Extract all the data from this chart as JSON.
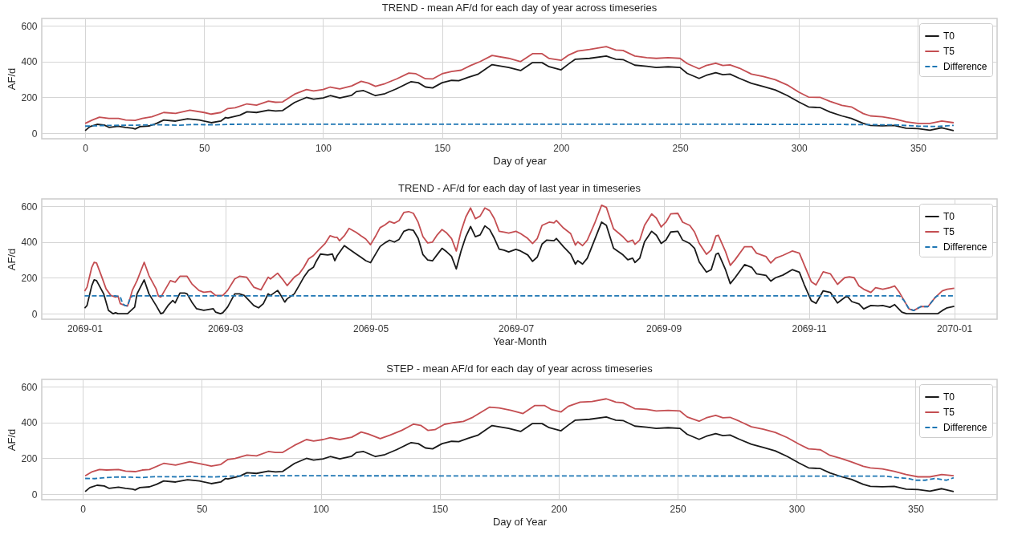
{
  "chart_data": [
    {
      "type": "line",
      "title": "TREND - mean AF/d for each day of year across timeseries",
      "xlabel": "Day of year",
      "ylabel": "AF/d",
      "xlim": [
        -18.25,
        383.25
      ],
      "ylim": [
        -30.5,
        640.5
      ],
      "xticks": [
        0,
        50,
        100,
        150,
        200,
        250,
        300,
        350
      ],
      "yticks": [
        0,
        200,
        400,
        600
      ],
      "grid": true,
      "legend": "top right",
      "series": [
        {
          "name": "T0",
          "color": "#1a1a1a",
          "line_style": "solid",
          "x": [
            0,
            2,
            5,
            8,
            10,
            14,
            17,
            20,
            21,
            23,
            27,
            30,
            33,
            38,
            43,
            48,
            53,
            57,
            59,
            60,
            65,
            68,
            72,
            77,
            80,
            83,
            88,
            93,
            96,
            100,
            103,
            107,
            112,
            114,
            117,
            122,
            126,
            131,
            137,
            140,
            143,
            146,
            150,
            154,
            157,
            161,
            165,
            171,
            178,
            183,
            188,
            192,
            195,
            200,
            203,
            206,
            212,
            219,
            223,
            226,
            231,
            236,
            240,
            245,
            250,
            253,
            258,
            261,
            265,
            268,
            271,
            275,
            280,
            285,
            290,
            295,
            300,
            304,
            309,
            313,
            318,
            322,
            327,
            330,
            335,
            340,
            345,
            350,
            355,
            360,
            365
          ],
          "values": [
            15,
            37,
            50,
            46,
            33,
            39,
            33,
            28,
            24,
            37,
            41,
            55,
            74,
            68,
            81,
            74,
            59,
            68,
            88,
            85,
            101,
            120,
            116,
            129,
            124,
            127,
            172,
            200,
            190,
            197,
            210,
            197,
            212,
            233,
            238,
            210,
            221,
            249,
            288,
            282,
            258,
            253,
            282,
            295,
            293,
            312,
            329,
            383,
            367,
            350,
            394,
            394,
            371,
            354,
            385,
            413,
            418,
            431,
            413,
            411,
            380,
            374,
            367,
            371,
            367,
            334,
            306,
            323,
            338,
            327,
            330,
            306,
            279,
            261,
            242,
            211,
            174,
            147,
            143,
            119,
            97,
            83,
            55,
            44,
            42,
            44,
            28,
            26,
            17,
            31,
            15
          ]
        },
        {
          "name": "T5",
          "color": "#c44e52",
          "line_style": "solid",
          "x": [
            0,
            3,
            6,
            10,
            14,
            17,
            21,
            24,
            28,
            33,
            38,
            44,
            50,
            53,
            57,
            60,
            63,
            68,
            72,
            77,
            80,
            83,
            88,
            93,
            96,
            100,
            103,
            107,
            112,
            116,
            119,
            122,
            126,
            131,
            136,
            139,
            143,
            146,
            150,
            154,
            158,
            162,
            166,
            171,
            178,
            183,
            188,
            192,
            195,
            200,
            203,
            207,
            212,
            219,
            223,
            226,
            231,
            236,
            240,
            245,
            250,
            253,
            258,
            261,
            265,
            268,
            271,
            275,
            280,
            285,
            290,
            295,
            300,
            304,
            309,
            313,
            318,
            322,
            327,
            330,
            335,
            340,
            345,
            350,
            355,
            360,
            365
          ],
          "values": [
            55,
            74,
            90,
            83,
            83,
            74,
            72,
            83,
            92,
            116,
            111,
            129,
            116,
            107,
            116,
            138,
            142,
            164,
            157,
            179,
            173,
            175,
            218,
            244,
            236,
            244,
            258,
            247,
            264,
            290,
            280,
            262,
            277,
            304,
            336,
            332,
            304,
            303,
            332,
            345,
            352,
            378,
            400,
            434,
            418,
            400,
            444,
            444,
            417,
            407,
            435,
            459,
            468,
            483,
            464,
            462,
            431,
            422,
            418,
            422,
            418,
            389,
            360,
            378,
            391,
            378,
            382,
            363,
            330,
            317,
            299,
            270,
            229,
            202,
            200,
            178,
            156,
            147,
            110,
            97,
            92,
            81,
            64,
            55,
            55,
            68,
            59
          ]
        },
        {
          "name": "Difference",
          "color": "#1f77b4",
          "line_style": "dashed",
          "x": [
            0,
            5,
            10,
            20,
            30,
            35,
            40,
            45,
            55,
            60,
            100,
            200,
            270,
            280,
            320,
            340,
            350,
            358,
            365
          ],
          "values": [
            40,
            42,
            44,
            45,
            48,
            46,
            45,
            49,
            47,
            50,
            51,
            51,
            51,
            50,
            49,
            47,
            40,
            38,
            44
          ]
        }
      ]
    },
    {
      "type": "line",
      "title": "TREND - AF/d for each day of last year in timeseries",
      "xlabel": "Year-Month",
      "ylabel": "AF/d",
      "xlim": [
        "2068-12-14",
        "2070-01-19"
      ],
      "ylim": [
        -30.5,
        640.5
      ],
      "xticks": [
        {
          "value": "2069-01-01",
          "label": "2069-01"
        },
        {
          "value": "2069-03-01",
          "label": "2069-03"
        },
        {
          "value": "2069-05-01",
          "label": "2069-05"
        },
        {
          "value": "2069-07-01",
          "label": "2069-07"
        },
        {
          "value": "2069-09-01",
          "label": "2069-09"
        },
        {
          "value": "2069-11-01",
          "label": "2069-11"
        },
        {
          "value": "2070-01-01",
          "label": "2070-01"
        }
      ],
      "yticks": [
        0,
        200,
        400,
        600
      ],
      "grid": true,
      "legend": "top right",
      "series": [
        {
          "name": "T0",
          "color": "#1a1a1a",
          "line_style": "solid",
          "x": [
            "2069-01-01",
            "2069-01-02",
            "2069-01-04",
            "2069-01-05",
            "2069-01-06",
            "2069-01-09",
            "2069-01-11",
            "2069-01-13",
            "2069-01-14",
            "2069-01-15",
            "2069-01-19",
            "2069-01-22",
            "2069-01-23",
            "2069-01-26",
            "2069-01-28",
            "2069-01-31",
            "2069-02-02",
            "2069-02-03",
            "2069-02-05",
            "2069-02-07",
            "2069-02-08",
            "2069-02-10",
            "2069-02-12",
            "2069-02-13",
            "2069-02-15",
            "2069-02-17",
            "2069-02-20",
            "2069-02-22",
            "2069-02-24",
            "2069-02-25",
            "2069-02-27",
            "2069-02-28",
            "2069-03-02",
            "2069-03-05",
            "2069-03-07",
            "2069-03-09",
            "2069-03-11",
            "2069-03-13",
            "2069-03-15",
            "2069-03-17",
            "2069-03-19",
            "2069-03-20",
            "2069-03-23",
            "2069-03-24",
            "2069-03-26",
            "2069-03-27",
            "2069-03-30",
            "2069-04-01",
            "2069-04-03",
            "2069-04-05",
            "2069-04-07",
            "2069-04-08",
            "2069-04-10",
            "2069-04-13",
            "2069-04-15",
            "2069-04-16",
            "2069-04-17",
            "2069-04-20",
            "2069-04-22",
            "2069-04-25",
            "2069-04-27",
            "2069-04-29",
            "2069-05-01",
            "2069-05-03",
            "2069-05-05",
            "2069-05-07",
            "2069-05-09",
            "2069-05-11",
            "2069-05-13",
            "2069-05-15",
            "2069-05-17",
            "2069-05-19",
            "2069-05-21",
            "2069-05-23",
            "2069-05-25",
            "2069-05-27",
            "2069-05-29",
            "2069-05-31",
            "2069-06-02",
            "2069-06-04",
            "2069-06-06",
            "2069-06-08",
            "2069-06-10",
            "2069-06-12",
            "2069-06-14",
            "2069-06-16",
            "2069-06-18",
            "2069-06-20",
            "2069-06-22",
            "2069-06-24",
            "2069-06-26",
            "2069-06-28",
            "2069-07-01",
            "2069-07-03",
            "2069-07-06",
            "2069-07-08",
            "2069-07-10",
            "2069-07-12",
            "2069-07-14",
            "2069-07-17",
            "2069-07-18",
            "2069-07-21",
            "2069-07-24",
            "2069-07-26",
            "2069-07-27",
            "2069-07-29",
            "2069-07-31",
            "2069-08-03",
            "2069-08-06",
            "2069-08-08",
            "2069-08-11",
            "2069-08-15",
            "2069-08-17",
            "2069-08-19",
            "2069-08-20",
            "2069-08-22",
            "2069-08-24",
            "2069-08-27",
            "2069-08-29",
            "2069-08-31",
            "2069-09-02",
            "2069-09-04",
            "2069-09-07",
            "2069-09-09",
            "2069-09-12",
            "2069-09-14",
            "2069-09-16",
            "2069-09-19",
            "2069-09-21",
            "2069-09-23",
            "2069-09-24",
            "2069-09-27",
            "2069-09-29",
            "2069-10-01",
            "2069-10-05",
            "2069-10-08",
            "2069-10-10",
            "2069-10-14",
            "2069-10-16",
            "2069-10-18",
            "2069-10-21",
            "2069-10-25",
            "2069-10-28",
            "2069-10-30",
            "2069-11-02",
            "2069-11-04",
            "2069-11-07",
            "2069-11-10",
            "2069-11-13",
            "2069-11-17",
            "2069-11-19",
            "2069-11-22",
            "2069-11-24",
            "2069-11-27",
            "2069-11-30",
            "2069-12-02",
            "2069-12-05",
            "2069-12-07",
            "2069-12-10",
            "2069-12-12",
            "2069-12-25",
            "2069-12-27",
            "2069-12-29",
            "2070-01-01"
          ],
          "values": [
            31,
            46,
            157,
            189,
            185,
            111,
            19,
            0,
            6,
            0,
            0,
            37,
            111,
            189,
            111,
            46,
            0,
            6,
            46,
            74,
            61,
            115,
            115,
            111,
            65,
            28,
            19,
            24,
            28,
            9,
            0,
            6,
            37,
            111,
            111,
            102,
            74,
            46,
            33,
            56,
            111,
            102,
            130,
            111,
            65,
            83,
            111,
            157,
            204,
            241,
            259,
            287,
            333,
            328,
            333,
            296,
            324,
            380,
            361,
            333,
            315,
            296,
            285,
            330,
            375,
            395,
            410,
            400,
            415,
            460,
            470,
            465,
            420,
            330,
            300,
            295,
            330,
            365,
            345,
            320,
            250,
            350,
            430,
            487,
            430,
            440,
            490,
            470,
            420,
            360,
            355,
            345,
            359,
            350,
            328,
            292,
            316,
            389,
            411,
            407,
            420,
            374,
            332,
            277,
            296,
            277,
            310,
            411,
            511,
            493,
            365,
            328,
            301,
            310,
            286,
            310,
            401,
            460,
            438,
            392,
            411,
            456,
            460,
            411,
            392,
            365,
            288,
            232,
            246,
            332,
            338,
            246,
            168,
            201,
            274,
            259,
            223,
            214,
            182,
            201,
            215,
            246,
            232,
            164,
            73,
            58,
            128,
            119,
            60,
            100,
            68,
            55,
            27,
            46,
            44,
            46,
            36,
            51,
            9,
            0,
            0,
            18,
            33,
            42
          ]
        },
        {
          "name": "T5",
          "color": "#c44e52",
          "line_style": "solid",
          "x": [
            "2069-01-01",
            "2069-01-02",
            "2069-01-04",
            "2069-01-05",
            "2069-01-06",
            "2069-01-08",
            "2069-01-10",
            "2069-01-12",
            "2069-01-14",
            "2069-01-15",
            "2069-01-16",
            "2069-01-18",
            "2069-01-19",
            "2069-01-20",
            "2069-01-21",
            "2069-01-23",
            "2069-01-26",
            "2069-01-28",
            "2069-01-31",
            "2069-02-01",
            "2069-02-02",
            "2069-02-04",
            "2069-02-06",
            "2069-02-08",
            "2069-02-10",
            "2069-02-13",
            "2069-02-15",
            "2069-02-18",
            "2069-02-20",
            "2069-02-23",
            "2069-02-25",
            "2069-02-28",
            "2069-03-02",
            "2069-03-05",
            "2069-03-07",
            "2069-03-10",
            "2069-03-13",
            "2069-03-16",
            "2069-03-19",
            "2069-03-20",
            "2069-03-23",
            "2069-03-25",
            "2069-03-27",
            "2069-03-30",
            "2069-04-01",
            "2069-04-03",
            "2069-04-05",
            "2069-04-07",
            "2069-04-09",
            "2069-04-12",
            "2069-04-14",
            "2069-04-16",
            "2069-04-17",
            "2069-04-18",
            "2069-04-20",
            "2069-04-22",
            "2069-04-25",
            "2069-04-27",
            "2069-04-29",
            "2069-05-01",
            "2069-05-03",
            "2069-05-05",
            "2069-05-07",
            "2069-05-09",
            "2069-05-11",
            "2069-05-13",
            "2069-05-15",
            "2069-05-17",
            "2069-05-19",
            "2069-05-21",
            "2069-05-23",
            "2069-05-25",
            "2069-05-27",
            "2069-05-29",
            "2069-05-31",
            "2069-06-02",
            "2069-06-04",
            "2069-06-06",
            "2069-06-08",
            "2069-06-10",
            "2069-06-12",
            "2069-06-14",
            "2069-06-16",
            "2069-06-18",
            "2069-06-20",
            "2069-06-22",
            "2069-06-24",
            "2069-06-26",
            "2069-06-28",
            "2069-07-01",
            "2069-07-03",
            "2069-07-06",
            "2069-07-08",
            "2069-07-10",
            "2069-07-12",
            "2069-07-15",
            "2069-07-17",
            "2069-07-18",
            "2069-07-21",
            "2069-07-24",
            "2069-07-26",
            "2069-07-27",
            "2069-07-29",
            "2069-07-31",
            "2069-08-03",
            "2069-08-06",
            "2069-08-08",
            "2069-08-11",
            "2069-08-15",
            "2069-08-17",
            "2069-08-19",
            "2069-08-20",
            "2069-08-22",
            "2069-08-24",
            "2069-08-27",
            "2069-08-29",
            "2069-08-31",
            "2069-09-02",
            "2069-09-04",
            "2069-09-07",
            "2069-09-09",
            "2069-09-12",
            "2069-09-14",
            "2069-09-16",
            "2069-09-19",
            "2069-09-21",
            "2069-09-23",
            "2069-09-24",
            "2069-09-27",
            "2069-09-29",
            "2069-10-01",
            "2069-10-05",
            "2069-10-08",
            "2069-10-10",
            "2069-10-14",
            "2069-10-16",
            "2069-10-18",
            "2069-10-21",
            "2069-10-25",
            "2069-10-28",
            "2069-10-30",
            "2069-11-02",
            "2069-11-04",
            "2069-11-07",
            "2069-11-10",
            "2069-11-13",
            "2069-11-16",
            "2069-11-18",
            "2069-11-20",
            "2069-11-22",
            "2069-11-24",
            "2069-11-27",
            "2069-11-29",
            "2069-12-02",
            "2069-12-05",
            "2069-12-07",
            "2069-12-09",
            "2069-12-11",
            "2069-12-13",
            "2069-12-15",
            "2069-12-18",
            "2069-12-21",
            "2069-12-24",
            "2069-12-27",
            "2069-12-29",
            "2070-01-01"
          ],
          "values": [
            126,
            148,
            259,
            287,
            283,
            213,
            139,
            102,
            93,
            98,
            56,
            46,
            43,
            83,
            130,
            185,
            287,
            213,
            139,
            98,
            93,
            139,
            185,
            176,
            209,
            209,
            167,
            130,
            120,
            124,
            102,
            102,
            130,
            194,
            209,
            204,
            148,
            133,
            204,
            194,
            226,
            194,
            157,
            204,
            222,
            259,
            306,
            324,
            352,
            393,
            435,
            426,
            426,
            407,
            435,
            476,
            454,
            435,
            417,
            385,
            430,
            480,
            495,
            515,
            505,
            520,
            565,
            570,
            560,
            510,
            430,
            395,
            400,
            440,
            470,
            450,
            420,
            350,
            460,
            540,
            590,
            530,
            545,
            590,
            575,
            530,
            460,
            455,
            450,
            460,
            447,
            420,
            392,
            420,
            493,
            511,
            507,
            520,
            478,
            447,
            383,
            401,
            380,
            411,
            502,
            605,
            593,
            474,
            429,
            401,
            411,
            387,
            411,
            493,
            557,
            533,
            484,
            511,
            557,
            560,
            511,
            493,
            456,
            392,
            332,
            356,
            434,
            438,
            347,
            270,
            301,
            374,
            374,
            338,
            319,
            283,
            310,
            325,
            350,
            338,
            274,
            179,
            161,
            234,
            223,
            164,
            201,
            206,
            201,
            155,
            137,
            119,
            146,
            137,
            146,
            155,
            119,
            73,
            27,
            18,
            40,
            40,
            91,
            128,
            137,
            142
          ]
        },
        {
          "name": "Difference",
          "color": "#1f77b4",
          "line_style": "dashed",
          "x": [
            "2069-01-01",
            "2069-01-14",
            "2069-01-16",
            "2069-01-17",
            "2069-01-18",
            "2069-01-19",
            "2069-01-20",
            "2069-01-21",
            "2069-12-07",
            "2069-12-09",
            "2069-12-11",
            "2069-12-13",
            "2069-12-15",
            "2069-12-18",
            "2069-12-21",
            "2069-12-24",
            "2069-12-25",
            "2070-01-01"
          ],
          "values": [
            100,
            100,
            93,
            55,
            46,
            43,
            83,
            100,
            100,
            100,
            73,
            27,
            18,
            40,
            40,
            91,
            100,
            100
          ]
        }
      ]
    },
    {
      "type": "line",
      "title": "STEP - mean AF/d for each day of year across timeseries",
      "xlabel": "Day of Year",
      "ylabel": "AF/d",
      "xlim": [
        -17.25,
        384.25
      ],
      "ylim": [
        -30.5,
        640.5
      ],
      "xticks": [
        0,
        50,
        100,
        150,
        200,
        250,
        300,
        350
      ],
      "yticks": [
        0,
        200,
        400,
        600
      ],
      "grid": true,
      "legend": "top right",
      "series": [
        {
          "name": "T0",
          "color": "#1a1a1a",
          "line_style": "solid",
          "x": [
            1,
            3,
            6,
            9,
            11,
            15,
            18,
            21,
            22,
            24,
            28,
            31,
            34,
            39,
            44,
            49,
            54,
            58,
            60,
            61,
            66,
            69,
            73,
            78,
            81,
            84,
            89,
            94,
            97,
            101,
            104,
            108,
            113,
            115,
            118,
            123,
            127,
            132,
            138,
            141,
            144,
            147,
            151,
            155,
            158,
            162,
            166,
            172,
            179,
            184,
            189,
            193,
            196,
            201,
            204,
            207,
            213,
            220,
            224,
            227,
            232,
            237,
            241,
            246,
            251,
            254,
            259,
            262,
            266,
            269,
            272,
            276,
            281,
            286,
            291,
            296,
            301,
            305,
            310,
            314,
            319,
            323,
            328,
            331,
            336,
            341,
            346,
            351,
            356,
            361,
            366
          ],
          "values": [
            15,
            37,
            50,
            46,
            33,
            39,
            33,
            28,
            24,
            37,
            41,
            55,
            74,
            68,
            81,
            74,
            59,
            68,
            88,
            85,
            101,
            120,
            116,
            129,
            124,
            127,
            172,
            200,
            190,
            197,
            210,
            197,
            212,
            233,
            238,
            210,
            221,
            249,
            288,
            282,
            258,
            253,
            282,
            295,
            293,
            312,
            329,
            383,
            367,
            350,
            394,
            394,
            371,
            354,
            385,
            413,
            418,
            431,
            413,
            411,
            380,
            374,
            367,
            371,
            367,
            334,
            306,
            323,
            338,
            327,
            330,
            306,
            279,
            261,
            242,
            211,
            174,
            147,
            143,
            119,
            97,
            83,
            55,
            44,
            42,
            44,
            28,
            26,
            17,
            31,
            15
          ]
        },
        {
          "name": "T5",
          "color": "#c44e52",
          "line_style": "solid",
          "x": [
            1,
            4,
            7,
            10,
            15,
            18,
            22,
            25,
            28,
            34,
            39,
            45,
            50,
            54,
            58,
            61,
            64,
            69,
            73,
            78,
            81,
            84,
            89,
            94,
            97,
            101,
            104,
            108,
            113,
            117,
            120,
            125,
            129,
            134,
            139,
            142,
            145,
            148,
            152,
            156,
            160,
            164,
            171,
            175,
            180,
            185,
            190,
            194,
            197,
            201,
            204,
            209,
            214,
            220,
            224,
            227,
            232,
            237,
            241,
            246,
            251,
            254,
            259,
            262,
            266,
            269,
            272,
            276,
            281,
            286,
            291,
            296,
            301,
            305,
            310,
            314,
            319,
            323,
            328,
            331,
            336,
            341,
            346,
            351,
            356,
            361,
            366
          ],
          "values": [
            103,
            126,
            138,
            135,
            138,
            129,
            126,
            135,
            138,
            172,
            162,
            181,
            168,
            157,
            166,
            194,
            199,
            218,
            214,
            238,
            233,
            233,
            273,
            305,
            297,
            305,
            316,
            305,
            318,
            347,
            336,
            310,
            329,
            356,
            391,
            384,
            356,
            360,
            390,
            399,
            406,
            430,
            486,
            481,
            468,
            450,
            495,
            495,
            472,
            459,
            490,
            514,
            517,
            532,
            514,
            510,
            477,
            473,
            464,
            468,
            464,
            431,
            407,
            426,
            440,
            426,
            429,
            407,
            376,
            363,
            345,
            316,
            279,
            253,
            248,
            217,
            198,
            180,
            156,
            147,
            141,
            128,
            110,
            97,
            97,
            110,
            103
          ]
        },
        {
          "name": "Difference",
          "color": "#1f77b4",
          "line_style": "dashed",
          "x": [
            1,
            5,
            10,
            15,
            20,
            25,
            30,
            40,
            45,
            55,
            60,
            70,
            337,
            342,
            347,
            350,
            354,
            358,
            363,
            366
          ],
          "values": [
            88,
            87,
            93,
            96,
            95,
            93,
            98,
            97,
            100,
            96,
            100,
            103,
            101,
            93,
            88,
            78,
            78,
            88,
            78,
            92
          ]
        }
      ]
    }
  ]
}
